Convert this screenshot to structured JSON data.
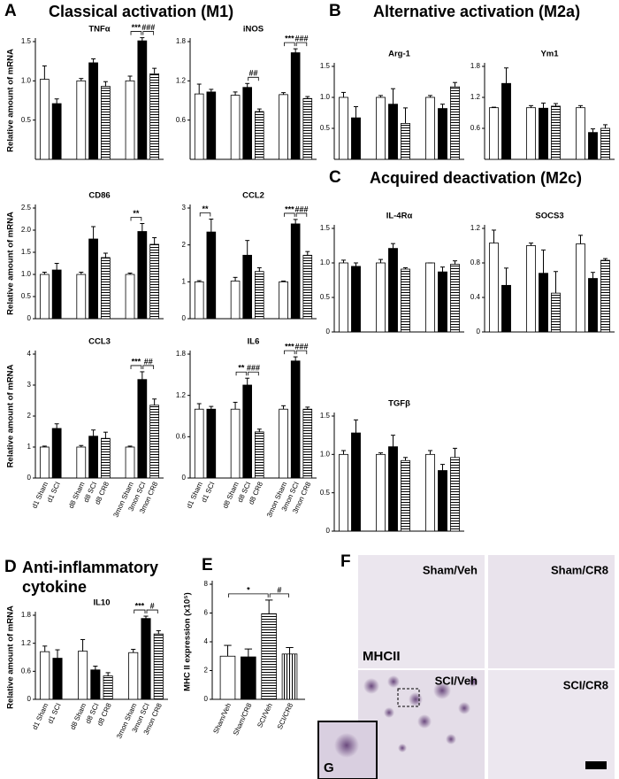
{
  "figure": {
    "panels": [
      {
        "letter": "A",
        "heading": "Classical activation (M1)"
      },
      {
        "letter": "B",
        "heading": "Alternative activation (M2a)"
      },
      {
        "letter": "C",
        "heading": "Acquired deactivation (M2c)"
      },
      {
        "letter": "D",
        "heading": "Anti-inflammatory cytokine"
      },
      {
        "letter": "E"
      },
      {
        "letter": "F"
      }
    ],
    "micrographs": {
      "labels": [
        "Sham/Veh",
        "Sham/CR8",
        "SCI/Veh",
        "SCI/CR8"
      ],
      "stain": "MHCII",
      "inset": "G"
    }
  },
  "chart_data": [
    {
      "type": "bar",
      "title": "TNFα",
      "ylabel": "Relative amount of mRNA",
      "values": [
        1.02,
        0.71,
        1.0,
        1.23,
        0.93,
        1.0,
        1.51,
        1.09
      ],
      "errors": [
        0.17,
        0.06,
        0.03,
        0.05,
        0.06,
        0.06,
        0.04,
        0.07
      ],
      "fills": [
        "white",
        "black",
        "white",
        "black",
        "hstripes",
        "white",
        "black",
        "hstripes"
      ],
      "ylim": [
        0,
        1.5
      ],
      "yticks": [
        0.5,
        {
          "value": 1,
          "label": "1.0"
        },
        1.5
      ],
      "annotations": [
        {
          "text": "***",
          "between": [
            5,
            6
          ]
        },
        {
          "text": "###",
          "between": [
            6,
            7
          ]
        }
      ]
    },
    {
      "type": "bar",
      "title": "iNOS",
      "values": [
        1.0,
        1.03,
        0.98,
        1.1,
        0.73,
        0.99,
        1.63,
        0.93
      ],
      "errors": [
        0.15,
        0.04,
        0.05,
        0.06,
        0.04,
        0.03,
        0.06,
        0.03
      ],
      "fills": [
        "white",
        "black",
        "white",
        "black",
        "hstripes",
        "white",
        "black",
        "hstripes"
      ],
      "ylim": [
        0,
        1.8
      ],
      "yticks": [
        0.6,
        1.2,
        1.8
      ],
      "annotations": [
        {
          "text": "##",
          "between": [
            3,
            4
          ]
        },
        {
          "text": "***",
          "between": [
            5,
            6
          ]
        },
        {
          "text": "###",
          "between": [
            6,
            7
          ]
        }
      ]
    },
    {
      "type": "bar",
      "title": "CD86",
      "ylabel": "Relative amount of mRNA",
      "values": [
        1.0,
        1.1,
        1.0,
        1.8,
        1.38,
        1.0,
        1.97,
        1.68
      ],
      "errors": [
        0.05,
        0.15,
        0.05,
        0.28,
        0.1,
        0.03,
        0.18,
        0.15
      ],
      "fills": [
        "white",
        "black",
        "white",
        "black",
        "hstripes",
        "white",
        "black",
        "hstripes"
      ],
      "ylim": [
        0,
        2.5
      ],
      "yticks": [
        0,
        0.5,
        {
          "value": 1,
          "label": "1.0"
        },
        1.5,
        {
          "value": 2,
          "label": "2.0"
        },
        2.5
      ],
      "annotations": [
        {
          "text": "**",
          "between": [
            5,
            6
          ]
        }
      ]
    },
    {
      "type": "bar",
      "title": "CCL2",
      "values": [
        1.0,
        2.35,
        1.02,
        1.72,
        1.28,
        1.0,
        2.57,
        1.72
      ],
      "errors": [
        0.03,
        0.35,
        0.1,
        0.4,
        0.1,
        0.02,
        0.12,
        0.1
      ],
      "fills": [
        "white",
        "black",
        "white",
        "black",
        "hstripes",
        "white",
        "black",
        "hstripes"
      ],
      "ylim": [
        0,
        3
      ],
      "yticks": [
        0,
        1,
        2,
        3
      ],
      "annotations": [
        {
          "text": "**",
          "between": [
            0,
            1
          ]
        },
        {
          "text": "***",
          "between": [
            5,
            6
          ]
        },
        {
          "text": "###",
          "between": [
            6,
            7
          ]
        }
      ]
    },
    {
      "type": "bar",
      "title": "CCL3",
      "ylabel": "Relative amount of mRNA",
      "categories": [
        "d1 Sham",
        "d1 SCI",
        "d8 Sham",
        "d8 SCI",
        "d8 CR8",
        "3mon Sham",
        "3mon SCI",
        "3mon CR8"
      ],
      "values": [
        1.0,
        1.6,
        1.0,
        1.35,
        1.28,
        1.0,
        3.18,
        2.35
      ],
      "errors": [
        0.03,
        0.15,
        0.05,
        0.2,
        0.2,
        0.03,
        0.25,
        0.2
      ],
      "fills": [
        "white",
        "black",
        "white",
        "black",
        "hstripes",
        "white",
        "black",
        "hstripes"
      ],
      "ylim": [
        0,
        4
      ],
      "yticks": [
        0,
        1,
        2,
        3,
        4
      ],
      "annotations": [
        {
          "text": "***",
          "between": [
            5,
            6
          ]
        },
        {
          "text": "##",
          "between": [
            6,
            7
          ]
        }
      ]
    },
    {
      "type": "bar",
      "title": "IL6",
      "categories": [
        "d1 Sham",
        "d1 SCI",
        "d8 Sham",
        "d8 SCI",
        "d8 CR8",
        "3mon Sham",
        "3mon SCI",
        "3mon CR8"
      ],
      "values": [
        1.0,
        1.0,
        1.0,
        1.35,
        0.67,
        1.0,
        1.7,
        1.0
      ],
      "errors": [
        0.08,
        0.04,
        0.1,
        0.1,
        0.04,
        0.05,
        0.06,
        0.03
      ],
      "fills": [
        "white",
        "black",
        "white",
        "black",
        "hstripes",
        "white",
        "black",
        "hstripes"
      ],
      "ylim": [
        0,
        1.8
      ],
      "yticks": [
        0,
        0.6,
        1.2,
        1.8
      ],
      "annotations": [
        {
          "text": "**",
          "between": [
            2,
            3
          ]
        },
        {
          "text": "###",
          "between": [
            3,
            4
          ]
        },
        {
          "text": "***",
          "between": [
            5,
            6
          ]
        },
        {
          "text": "###",
          "between": [
            6,
            7
          ]
        }
      ]
    },
    {
      "type": "bar",
      "title": "Arg-1",
      "values": [
        1.0,
        0.67,
        1.0,
        0.89,
        0.58,
        1.0,
        0.82,
        1.17
      ],
      "errors": [
        0.08,
        0.18,
        0.03,
        0.25,
        0.25,
        0.03,
        0.07,
        0.07
      ],
      "fills": [
        "white",
        "black",
        "white",
        "black",
        "hstripes",
        "white",
        "black",
        "hstripes"
      ],
      "ylim": [
        0,
        1.5
      ],
      "yticks": [
        0.5,
        {
          "value": 1,
          "label": "1.0"
        },
        1.5
      ]
    },
    {
      "type": "bar",
      "title": "Ym1",
      "values": [
        1.0,
        1.47,
        1.0,
        0.99,
        1.03,
        1.0,
        0.52,
        0.6
      ],
      "errors": [
        0.01,
        0.3,
        0.04,
        0.1,
        0.05,
        0.04,
        0.07,
        0.07
      ],
      "fills": [
        "white",
        "black",
        "white",
        "black",
        "hstripes",
        "white",
        "black",
        "hstripes"
      ],
      "ylim": [
        0,
        1.8
      ],
      "yticks": [
        0.6,
        1.2,
        1.8
      ]
    },
    {
      "type": "bar",
      "title": "IL-4Rα",
      "values": [
        1.0,
        0.95,
        1.0,
        1.21,
        0.91,
        1.0,
        0.87,
        0.98
      ],
      "errors": [
        0.04,
        0.05,
        0.05,
        0.07,
        0.02,
        0.0,
        0.07,
        0.05
      ],
      "fills": [
        "white",
        "black",
        "white",
        "black",
        "hstripes",
        "white",
        "black",
        "hstripes"
      ],
      "ylim": [
        0,
        1.5
      ],
      "yticks": [
        0,
        0.5,
        {
          "value": 1,
          "label": "1.0"
        },
        1.5
      ]
    },
    {
      "type": "bar",
      "title": "SOCS3",
      "values": [
        1.03,
        0.54,
        1.0,
        0.68,
        0.45,
        1.02,
        0.62,
        0.83
      ],
      "errors": [
        0.15,
        0.2,
        0.03,
        0.27,
        0.25,
        0.1,
        0.07,
        0.02
      ],
      "fills": [
        "white",
        "black",
        "white",
        "black",
        "hstripes",
        "white",
        "black",
        "hstripes"
      ],
      "ylim": [
        0,
        1.2
      ],
      "yticks": [
        0,
        0.4,
        0.8,
        1.2
      ]
    },
    {
      "type": "bar",
      "title": "TGFβ",
      "values": [
        1.0,
        1.28,
        1.0,
        1.1,
        0.92,
        1.0,
        0.79,
        0.96
      ],
      "errors": [
        0.05,
        0.17,
        0.02,
        0.15,
        0.04,
        0.05,
        0.08,
        0.12
      ],
      "fills": [
        "white",
        "black",
        "white",
        "black",
        "hstripes",
        "white",
        "black",
        "hstripes"
      ],
      "ylim": [
        0,
        1.5
      ],
      "yticks": [
        0,
        0.5,
        {
          "value": 1,
          "label": "1.0"
        },
        1.5
      ]
    },
    {
      "type": "bar",
      "title": "IL10",
      "ylabel": "Relative amount of mRNA",
      "categories": [
        "d1 Sham",
        "d1 SCI",
        "d8 Sham",
        "d8 SCI",
        "d8 CR8",
        "3mon Sham",
        "3mon SCI",
        "3mon CR8"
      ],
      "values": [
        1.02,
        0.88,
        1.03,
        0.63,
        0.5,
        1.0,
        1.73,
        1.4
      ],
      "errors": [
        0.12,
        0.18,
        0.25,
        0.08,
        0.07,
        0.07,
        0.05,
        0.07
      ],
      "fills": [
        "white",
        "black",
        "white",
        "black",
        "hstripes",
        "white",
        "black",
        "hstripes"
      ],
      "ylim": [
        0,
        1.8
      ],
      "yticks": [
        0,
        0.6,
        1.2,
        1.8
      ],
      "annotations": [
        {
          "text": "***",
          "between": [
            5,
            6
          ]
        },
        {
          "text": "#",
          "between": [
            6,
            7
          ]
        }
      ]
    },
    {
      "type": "bar",
      "ylabel": "MHC II expression (x10⁵)",
      "categories": [
        "Sham/Veh",
        "Sham/CR8",
        "SCI/Veh",
        "SCI/CR8"
      ],
      "values": [
        3.0,
        2.95,
        5.95,
        3.15
      ],
      "errors": [
        0.75,
        0.55,
        0.95,
        0.45
      ],
      "fills": [
        "white",
        "black",
        "hstripes",
        "vstripes"
      ],
      "ylim": [
        0,
        8
      ],
      "yticks": [
        0,
        2,
        4,
        6,
        8
      ],
      "annotations": [
        {
          "text": "*",
          "between": [
            0,
            2
          ]
        },
        {
          "text": "#",
          "between": [
            2,
            3
          ]
        }
      ]
    }
  ]
}
